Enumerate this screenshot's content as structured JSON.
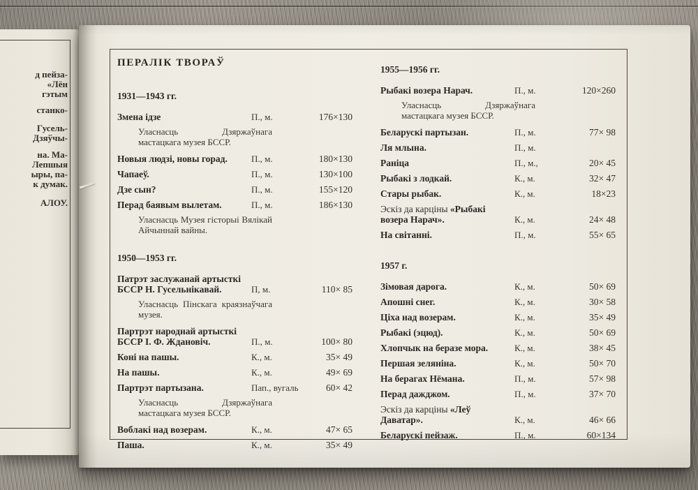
{
  "palette": {
    "paper": "#efece4",
    "ink": "#2e2b27",
    "frame_line": "#49453e",
    "wood": "#948f87"
  },
  "left_page": {
    "fragments": [
      "д пейза-",
      "«Лён",
      "гэтым",
      "станко-",
      "Гусель-",
      "Дзяўчы-",
      "на. Ма-",
      "Лепшыя",
      "ыры, па-",
      "к думак.",
      "АЛОУ."
    ]
  },
  "right_page": {
    "header": "ПЕРАЛІК ТВОРАЎ",
    "columns": [
      {
        "sections": [
          {
            "label": "1931—1943 гг.",
            "rows": [
              {
                "title": "Змена ідзе",
                "medium": "П., м.",
                "dims": "176×130",
                "note": "Уласнасць Дзяржаўнага мастацкага музея БССР."
              },
              {
                "title": "Новыя людзі, новы горад.",
                "medium": "П., м.",
                "dims": "180×130"
              },
              {
                "title": "Чапаеў.",
                "medium": "П., м.",
                "dims": "130×100"
              },
              {
                "title": "Дзе сын?",
                "medium": "П., м.",
                "dims": "155×120"
              },
              {
                "title": "Перад баявым вылетам.",
                "medium": "П., м.",
                "dims": "186×130",
                "note": "Уласнасць Музея гісторыі Вялікай Айчыннай вайны."
              }
            ]
          },
          {
            "label": "1950—1953 гг.",
            "rows": [
              {
                "title": "Патрэт заслужанай артысткі БССР Н. Гусельнікавай.",
                "medium": "П, м.",
                "dims": "110× 85",
                "note": "Уласнасць Пінскага краязнаўчага музея."
              },
              {
                "title": "Партрэт народнай артысткі БССР І. Ф. Ждановіч.",
                "medium": "П., м.",
                "dims": "100× 80"
              },
              {
                "title": "Коні на пашы.",
                "medium": "К., м.",
                "dims": "35× 49"
              },
              {
                "title": "На пашы.",
                "medium": "К., м.",
                "dims": "49× 69"
              },
              {
                "title": "Партрэт партызана.",
                "medium": "Пап., вугаль",
                "dims": "60× 42",
                "note": "Уласнасць Дзяржаўнага мастацкага музея БССР."
              },
              {
                "title": "Воблакі над возерам.",
                "medium": "К., м.",
                "dims": "47× 65"
              },
              {
                "title": "Паша.",
                "medium": "К., м.",
                "dims": "35× 49"
              }
            ]
          }
        ]
      },
      {
        "sections": [
          {
            "label": "1955—1956 гг.",
            "rows": [
              {
                "title": "Рыбакі возера Нарач.",
                "medium": "П., м.",
                "dims": "120×260",
                "note": "Уласнасць Дзяржаўнага мастацкага музея БССР."
              },
              {
                "title": "Беларускі партызан.",
                "medium": "П., м.",
                "dims": "77× 98"
              },
              {
                "title": "Ля млына.",
                "medium": "П., м.",
                "dims": ""
              },
              {
                "title": "Раніца",
                "medium": "П., м.,",
                "dims": "20× 45"
              },
              {
                "title": "Рыбакі з лодкай.",
                "medium": "К., м.",
                "dims": "32× 47"
              },
              {
                "title": "Стары рыбак.",
                "medium": "К., м.",
                "dims": "18×23"
              },
              {
                "title_prefix": "Эскіз да карціны ",
                "title": "«Рыбакі возера Нарач».",
                "medium": "К., м.",
                "dims": "24× 48"
              },
              {
                "title": "На світанні.",
                "medium": "П., м.",
                "dims": "55× 65"
              }
            ]
          },
          {
            "label": "1957 г.",
            "rows": [
              {
                "title": "Зімовая дарога.",
                "medium": "К., м.",
                "dims": "50× 69"
              },
              {
                "title": "Апошні снег.",
                "medium": "К., м.",
                "dims": "30× 58"
              },
              {
                "title": "Ціха над возерам.",
                "medium": "К., м.",
                "dims": "35× 49"
              },
              {
                "title": "Рыбакі (эцюд).",
                "medium": "К., м.",
                "dims": "50× 69"
              },
              {
                "title": "Хлопчык на беразе мора.",
                "medium": "К., м.",
                "dims": "38× 45"
              },
              {
                "title": "Першая зеляніна.",
                "medium": "К., м.",
                "dims": "50× 70"
              },
              {
                "title": "На берагах Нёмана.",
                "medium": "П., м.",
                "dims": "57× 98"
              },
              {
                "title": "Перад дажджом.",
                "medium": "П., м.",
                "dims": "37× 70"
              },
              {
                "title_prefix": "Эскіз да карціны ",
                "title": "«Леў Даватар».",
                "medium": "К., м.",
                "dims": "46× 66"
              },
              {
                "title": "Беларускі пейзаж.",
                "medium": "П., м.",
                "dims": "60×134"
              }
            ]
          }
        ]
      }
    ]
  }
}
